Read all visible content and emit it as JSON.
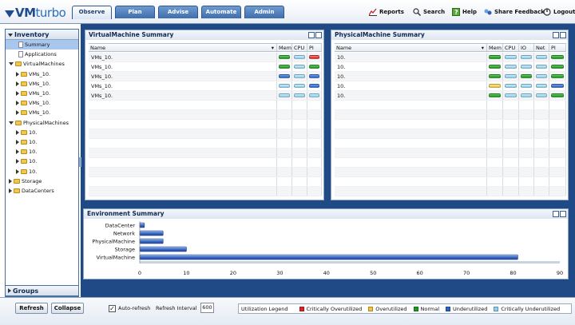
{
  "app": {
    "logo_main": "VM",
    "logo_sub": "turbo"
  },
  "tabs": [
    {
      "label": "Observe",
      "active": true
    },
    {
      "label": "Plan",
      "active": false
    },
    {
      "label": "Advise",
      "active": false
    },
    {
      "label": "Automate",
      "active": false
    },
    {
      "label": "Admin",
      "active": false
    }
  ],
  "toolbar": {
    "reports": "Reports",
    "search": "Search",
    "help": "Help",
    "share_feedback": "Share Feedback",
    "logout": "Logout"
  },
  "inventory": {
    "title": "Inventory",
    "items": [
      {
        "label": "Summary",
        "level": 1,
        "type": "doc",
        "selected": true
      },
      {
        "label": "Applications",
        "level": 1,
        "type": "doc"
      },
      {
        "label": "VirtualMachines",
        "level": 0,
        "type": "folder",
        "open": true
      },
      {
        "label": "VMs_10.",
        "level": 1,
        "type": "folder"
      },
      {
        "label": "VMs_10.",
        "level": 1,
        "type": "folder"
      },
      {
        "label": "VMs_10.",
        "level": 1,
        "type": "folder"
      },
      {
        "label": "VMs_10.",
        "level": 1,
        "type": "folder"
      },
      {
        "label": "VMs_10.",
        "level": 1,
        "type": "folder"
      },
      {
        "label": "PhysicalMachines",
        "level": 0,
        "type": "folder",
        "open": true
      },
      {
        "label": "10.",
        "level": 1,
        "type": "folder"
      },
      {
        "label": "10.",
        "level": 1,
        "type": "folder"
      },
      {
        "label": "10.",
        "level": 1,
        "type": "folder"
      },
      {
        "label": "10.",
        "level": 1,
        "type": "folder"
      },
      {
        "label": "10.",
        "level": 1,
        "type": "folder"
      },
      {
        "label": "Storage",
        "level": 0,
        "type": "folder"
      },
      {
        "label": "DataCenters",
        "level": 0,
        "type": "folder"
      }
    ],
    "groups_label": "Groups"
  },
  "vm_summary": {
    "title": "VirtualMachine Summary",
    "columns": [
      "Name",
      "Mem",
      "CPU",
      "PI"
    ],
    "rows": [
      {
        "name": "VMs_10.",
        "mem": "g",
        "cpu": "lb",
        "pi": "r"
      },
      {
        "name": "VMs_10.",
        "mem": "g",
        "cpu": "lb",
        "pi": "g"
      },
      {
        "name": "VMs_10.",
        "mem": "b",
        "cpu": "lb",
        "pi": "b"
      },
      {
        "name": "VMs_10.",
        "mem": "lb",
        "cpu": "lb",
        "pi": "b"
      },
      {
        "name": "VMs_10.",
        "mem": "lb",
        "cpu": "lb",
        "pi": "lb"
      }
    ]
  },
  "pm_summary": {
    "title": "PhysicalMachine Summary",
    "columns": [
      "Name",
      "Mem",
      "CPU",
      "IO",
      "Net",
      "PI"
    ],
    "rows": [
      {
        "name": "10.",
        "mem": "g",
        "cpu": "lb",
        "io": "lb",
        "net": "lb",
        "pi": "g"
      },
      {
        "name": "10.",
        "mem": "g",
        "cpu": "lb",
        "io": "lb",
        "net": "lb",
        "pi": "g"
      },
      {
        "name": "10.",
        "mem": "g",
        "cpu": "lb",
        "io": "g",
        "net": "lb",
        "pi": "g"
      },
      {
        "name": "10.",
        "mem": "y",
        "cpu": "lb",
        "io": "lb",
        "net": "lb",
        "pi": "b"
      },
      {
        "name": "10.",
        "mem": "g",
        "cpu": "lb",
        "io": "lb",
        "net": "lb",
        "pi": "g"
      }
    ]
  },
  "chart_data": {
    "type": "bar",
    "orientation": "horizontal",
    "title": "Environment Summary",
    "categories": [
      "DataCenter",
      "Network",
      "PhysicalMachine",
      "Storage",
      "VirtualMachine"
    ],
    "values": [
      1,
      5,
      5,
      10,
      81
    ],
    "xlim": [
      0,
      90
    ],
    "xticks": [
      0,
      10,
      20,
      30,
      40,
      50,
      60,
      70,
      80,
      90
    ],
    "grid": false
  },
  "footer": {
    "refresh": "Refresh",
    "collapse": "Collapse",
    "auto_refresh_label": "Auto-refresh",
    "auto_refresh_checked": true,
    "refresh_interval_label": "Refresh Interval",
    "refresh_interval_value": "600",
    "legend_title": "Utilization Legend",
    "legend": [
      {
        "label": "Critically Overutilized",
        "color": "#e0202a"
      },
      {
        "label": "Overutilized",
        "color": "#f3c531"
      },
      {
        "label": "Normal",
        "color": "#1f9a2a"
      },
      {
        "label": "Underutilized",
        "color": "#2d63c8"
      },
      {
        "label": "Critically Underutilized",
        "color": "#8fd0f2"
      }
    ]
  },
  "colors": {
    "accent_blue": "#1f4a86"
  }
}
